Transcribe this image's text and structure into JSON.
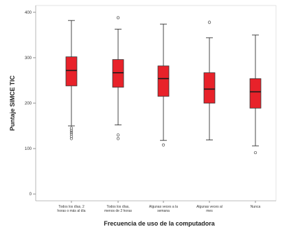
{
  "chart_data": {
    "type": "box",
    "xlabel": "Frecuencia de uso de la computadora",
    "ylabel": "Puntaje SIMCE TIC",
    "ylim": [
      -15,
      415
    ],
    "yticks": [
      0,
      100,
      200,
      300,
      400
    ],
    "ytick_labels": [
      "0",
      "100",
      "200",
      "300",
      "400"
    ],
    "categories": [
      [
        "Todos los días, 2",
        "horas o más al día"
      ],
      [
        "Todos los días,",
        "menos de 2 horas"
      ],
      [
        "Algunas veces a la",
        "semana"
      ],
      [
        "Algunas veces al",
        "mes"
      ],
      [
        "Nunca"
      ]
    ],
    "boxes": [
      {
        "whisker_low": 150,
        "q1": 238,
        "median": 272,
        "q3": 302,
        "whisker_high": 382,
        "outliers": [
          145,
          140,
          136,
          132,
          127,
          122
        ]
      },
      {
        "whisker_low": 152,
        "q1": 235,
        "median": 267,
        "q3": 296,
        "whisker_high": 363,
        "outliers": [
          388,
          130,
          122
        ]
      },
      {
        "whisker_low": 118,
        "q1": 215,
        "median": 254,
        "q3": 282,
        "whisker_high": 374,
        "outliers": [
          108
        ]
      },
      {
        "whisker_low": 119,
        "q1": 200,
        "median": 231,
        "q3": 267,
        "whisker_high": 344,
        "outliers": [
          378
        ]
      },
      {
        "whisker_low": 106,
        "q1": 189,
        "median": 225,
        "q3": 254,
        "whisker_high": 350,
        "outliers": [
          91
        ]
      }
    ],
    "box_color": "#e8222a",
    "grid": false
  }
}
